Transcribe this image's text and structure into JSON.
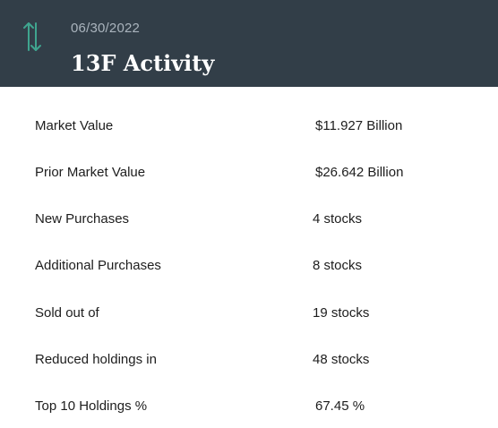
{
  "header": {
    "icon": "vertical-arrows-icon",
    "icon_color": "#3fa58f",
    "background": "#323e48",
    "date": "06/30/2022",
    "title": "13F Activity"
  },
  "rows": [
    {
      "label": "Market Value",
      "value": "$11.927 Billion"
    },
    {
      "label": "Prior Market Value",
      "value": "$26.642 Billion"
    },
    {
      "label": "New Purchases",
      "value": "4 stocks"
    },
    {
      "label": "Additional Purchases",
      "value": "8 stocks"
    },
    {
      "label": "Sold out of",
      "value": "19 stocks"
    },
    {
      "label": "Reduced holdings in",
      "value": "48 stocks"
    },
    {
      "label": "Top 10 Holdings %",
      "value": "67.45 %"
    }
  ]
}
